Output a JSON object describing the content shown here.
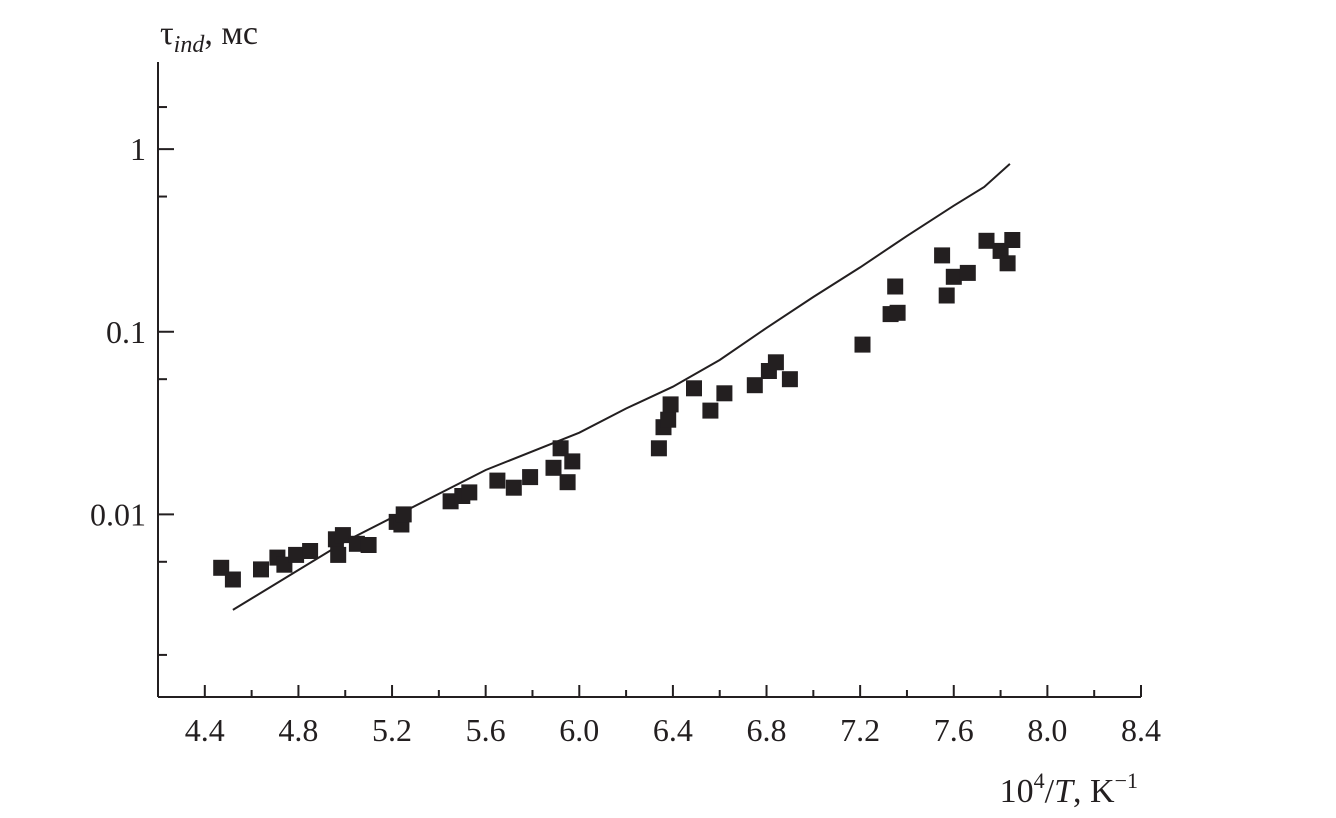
{
  "chart_data": {
    "type": "scatter",
    "title": "",
    "xlabel": {
      "prefix": "10",
      "sup": "4",
      "slash": "/",
      "var": "T",
      "unit": ", K",
      "unit_sup": "−1"
    },
    "ylabel": {
      "symbol": "τ",
      "sub": "ind",
      "unit": ", мс"
    },
    "x_ticks": [
      "4.4",
      "4.8",
      "5.2",
      "5.6",
      "6.0",
      "6.4",
      "6.8",
      "7.2",
      "7.6",
      "8.0",
      "8.4"
    ],
    "y_tick_labels": [
      {
        "value": 0.01,
        "label": "0.01"
      },
      {
        "value": 0.1,
        "label": "0.1"
      },
      {
        "value": 1,
        "label": "1"
      }
    ],
    "xlim": [
      4.2,
      8.4
    ],
    "ylim": [
      0.001,
      3
    ],
    "y_scale": "log",
    "grid": false,
    "legend": "none",
    "colors": {
      "ink": "#231f20"
    },
    "series": [
      {
        "type": "line",
        "points": [
          [
            4.52,
            0.003
          ],
          [
            5.0,
            0.0071
          ],
          [
            5.6,
            0.0175
          ],
          [
            6.0,
            0.028
          ],
          [
            6.2,
            0.038
          ],
          [
            6.4,
            0.05
          ],
          [
            6.6,
            0.07
          ],
          [
            6.8,
            0.105
          ],
          [
            7.0,
            0.155
          ],
          [
            7.2,
            0.225
          ],
          [
            7.4,
            0.335
          ],
          [
            7.6,
            0.49
          ],
          [
            7.73,
            0.62
          ],
          [
            7.84,
            0.83
          ]
        ]
      },
      {
        "type": "scatter",
        "marker": "square",
        "points": [
          [
            4.47,
            0.0051
          ],
          [
            4.52,
            0.0044
          ],
          [
            4.64,
            0.005
          ],
          [
            4.71,
            0.0058
          ],
          [
            4.74,
            0.0053
          ],
          [
            4.79,
            0.006
          ],
          [
            4.85,
            0.0063
          ],
          [
            4.96,
            0.0073
          ],
          [
            4.97,
            0.006
          ],
          [
            4.99,
            0.0077
          ],
          [
            5.05,
            0.0069
          ],
          [
            5.1,
            0.0068
          ],
          [
            5.22,
            0.0091
          ],
          [
            5.24,
            0.0088
          ],
          [
            5.25,
            0.01
          ],
          [
            5.45,
            0.0118
          ],
          [
            5.5,
            0.0126
          ],
          [
            5.53,
            0.0132
          ],
          [
            5.65,
            0.0153
          ],
          [
            5.72,
            0.014
          ],
          [
            5.79,
            0.016
          ],
          [
            5.89,
            0.018
          ],
          [
            5.92,
            0.023
          ],
          [
            5.95,
            0.015
          ],
          [
            5.97,
            0.0195
          ],
          [
            6.34,
            0.023
          ],
          [
            6.36,
            0.03
          ],
          [
            6.38,
            0.033
          ],
          [
            6.39,
            0.04
          ],
          [
            6.49,
            0.049
          ],
          [
            6.56,
            0.037
          ],
          [
            6.62,
            0.046
          ],
          [
            6.75,
            0.051
          ],
          [
            6.81,
            0.061
          ],
          [
            6.84,
            0.068
          ],
          [
            6.9,
            0.055
          ],
          [
            7.21,
            0.085
          ],
          [
            7.33,
            0.125
          ],
          [
            7.35,
            0.177
          ],
          [
            7.36,
            0.127
          ],
          [
            7.55,
            0.262
          ],
          [
            7.57,
            0.158
          ],
          [
            7.6,
            0.2
          ],
          [
            7.66,
            0.21
          ],
          [
            7.74,
            0.315
          ],
          [
            7.8,
            0.277
          ],
          [
            7.83,
            0.237
          ],
          [
            7.85,
            0.318
          ]
        ]
      }
    ]
  }
}
